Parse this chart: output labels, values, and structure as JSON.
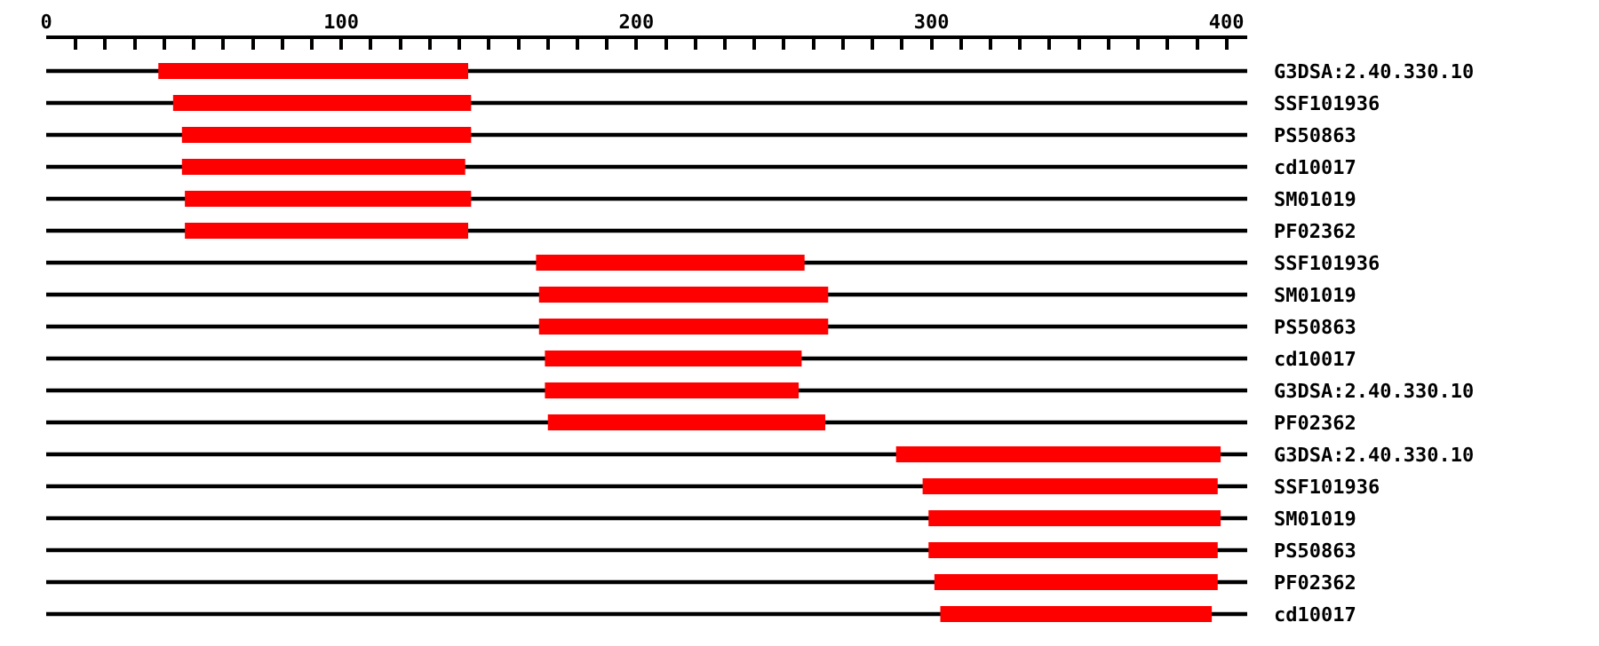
{
  "chart_data": {
    "type": "bar",
    "orientation": "horizontal",
    "categories": [
      "G3DSA:2.40.330.10",
      "SSF101936",
      "PS50863",
      "cd10017",
      "SM01019",
      "PF02362",
      "SSF101936",
      "SM01019",
      "PS50863",
      "cd10017",
      "G3DSA:2.40.330.10",
      "PF02362",
      "G3DSA:2.40.330.10",
      "SSF101936",
      "SM01019",
      "PS50863",
      "PF02362",
      "cd10017"
    ],
    "series": [
      {
        "color": "#000000",
        "base": [
          0,
          0,
          0,
          0,
          0,
          0,
          0,
          0,
          0,
          0,
          0,
          0,
          0,
          0,
          0,
          0,
          0,
          0
        ],
        "values": [
          407,
          407,
          407,
          407,
          407,
          407,
          407,
          407,
          407,
          407,
          407,
          407,
          407,
          407,
          407,
          407,
          407,
          407
        ]
      },
      {
        "color": "#ff0000",
        "base": [
          38,
          43,
          46,
          46,
          47,
          47,
          166,
          167,
          167,
          169,
          169,
          170,
          288,
          297,
          299,
          299,
          301,
          303
        ],
        "values": [
          105,
          101,
          98,
          96,
          97,
          96,
          91,
          98,
          98,
          87,
          86,
          94,
          110,
          100,
          99,
          98,
          96,
          92
        ]
      }
    ],
    "xlim": [
      0,
      407
    ],
    "xticks": [
      0,
      {
        "value": 10,
        "label": null
      },
      {
        "value": 20,
        "label": null
      },
      {
        "value": 30,
        "label": null
      },
      {
        "value": 40,
        "label": null
      },
      {
        "value": 50,
        "label": null
      },
      {
        "value": 60,
        "label": null
      },
      {
        "value": 70,
        "label": null
      },
      {
        "value": 80,
        "label": null
      },
      {
        "value": 90,
        "label": null
      },
      100,
      {
        "value": 110,
        "label": null
      },
      {
        "value": 120,
        "label": null
      },
      {
        "value": 130,
        "label": null
      },
      {
        "value": 140,
        "label": null
      },
      {
        "value": 150,
        "label": null
      },
      {
        "value": 160,
        "label": null
      },
      {
        "value": 170,
        "label": null
      },
      {
        "value": 180,
        "label": null
      },
      {
        "value": 190,
        "label": null
      },
      200,
      {
        "value": 210,
        "label": null
      },
      {
        "value": 220,
        "label": null
      },
      {
        "value": 230,
        "label": null
      },
      {
        "value": 240,
        "label": null
      },
      {
        "value": 250,
        "label": null
      },
      {
        "value": 260,
        "label": null
      },
      {
        "value": 270,
        "label": null
      },
      {
        "value": 280,
        "label": null
      },
      {
        "value": 290,
        "label": null
      },
      300,
      {
        "value": 310,
        "label": null
      },
      {
        "value": 320,
        "label": null
      },
      {
        "value": 330,
        "label": null
      },
      {
        "value": 340,
        "label": null
      },
      {
        "value": 350,
        "label": null
      },
      {
        "value": 360,
        "label": null
      },
      {
        "value": 370,
        "label": null
      },
      {
        "value": 380,
        "label": null
      },
      {
        "value": 390,
        "label": null
      },
      400
    ]
  }
}
